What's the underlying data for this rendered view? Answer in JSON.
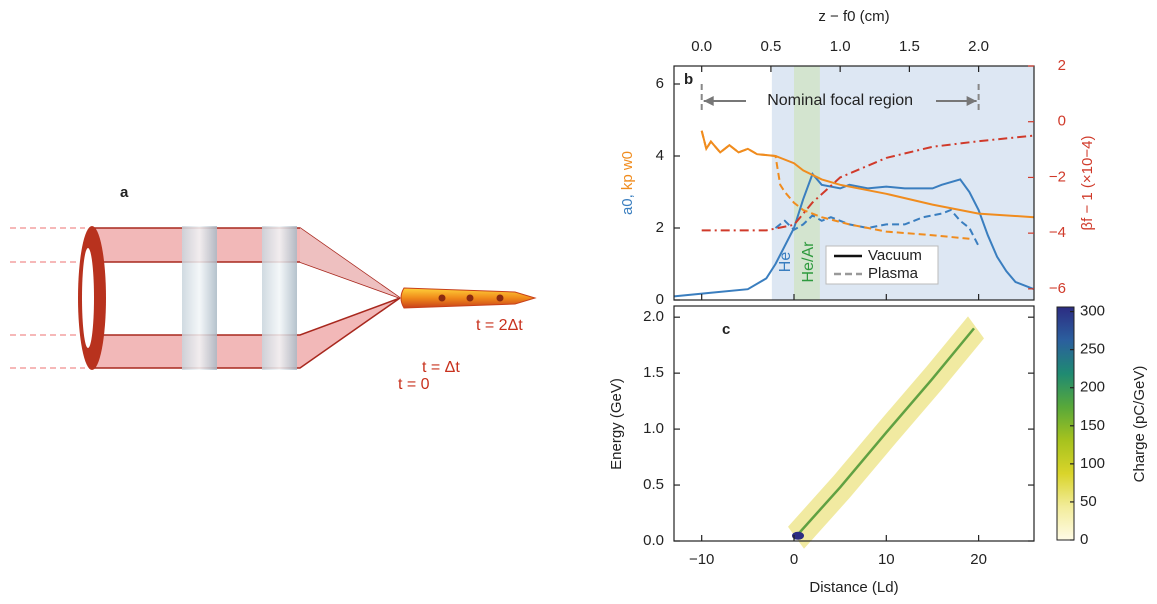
{
  "panel_a": {
    "label": "a",
    "times": [
      "t = 0",
      "t = Δt",
      "t = 2Δt"
    ]
  },
  "chart_data": [
    {
      "type": "line",
      "label": "b",
      "x2label": "z − f0 (cm)",
      "x2lim": [
        -0.2,
        2.4
      ],
      "x2ticks": [
        {
          "value": 0,
          "label": "0.0"
        },
        {
          "value": 0.5,
          "label": "0.5"
        },
        {
          "value": 1,
          "label": "1.0"
        },
        {
          "value": 1.5,
          "label": "1.5"
        },
        {
          "value": 2,
          "label": "2.0"
        }
      ],
      "xlim": [
        -13,
        26
      ],
      "ylabel_parts": [
        {
          "text": "a0,",
          "color": "#3a7ebf"
        },
        {
          "text": "kp w0",
          "color": "#f08c1e"
        }
      ],
      "ylim": [
        0,
        6.5
      ],
      "yticks": [
        0,
        2,
        4,
        6
      ],
      "y2label": "βf − 1 (×10−4)",
      "y2color": "#d03a2a",
      "y2lim": [
        -6.4,
        2
      ],
      "y2ticks": [
        {
          "value": -6,
          "label": "−6"
        },
        {
          "value": -4,
          "label": "−4"
        },
        {
          "value": -2,
          "label": "−2"
        },
        0,
        2
      ],
      "regions": [
        {
          "label": "He",
          "range": [
            -2.4,
            26
          ],
          "color": "#dde7f3",
          "text_color": "#3a7ebf"
        },
        {
          "label": "He/Ar",
          "range": [
            0,
            2.8
          ],
          "color": "#d3e4cf",
          "text_color": "#2e9a3e"
        }
      ],
      "annotation": {
        "text": "Nominal focal region",
        "range": [
          -10,
          20
        ]
      },
      "legend": {
        "position": "lower center",
        "entries": [
          {
            "name": "Vacuum",
            "dash": "solid"
          },
          {
            "name": "Plasma",
            "dash": "dashed"
          }
        ]
      },
      "series": [
        {
          "color": "#3a7ebf",
          "dash": "solid",
          "x": [
            -13,
            -9,
            -5,
            -3,
            -2,
            0,
            1,
            2,
            3,
            5,
            6,
            8,
            10,
            12,
            15,
            16,
            18,
            19,
            20,
            21,
            22,
            23,
            24,
            26
          ],
          "values": [
            0.1,
            0.2,
            0.3,
            0.6,
            1.0,
            2.0,
            2.8,
            3.5,
            3.2,
            3.1,
            3.2,
            3.1,
            3.15,
            3.1,
            3.1,
            3.2,
            3.35,
            3.0,
            2.5,
            1.8,
            1.2,
            0.8,
            0.5,
            0.3
          ]
        },
        {
          "color": "#3a7ebf",
          "dash": "dashed",
          "x": [
            -2,
            -1,
            0,
            1,
            2,
            3,
            4,
            6,
            8,
            10,
            12,
            14,
            16,
            17,
            18,
            19,
            20
          ],
          "values": [
            2.0,
            2.2,
            1.95,
            2.1,
            2.35,
            2.2,
            2.3,
            2.1,
            2.0,
            2.1,
            2.1,
            2.3,
            2.4,
            2.5,
            2.2,
            2.0,
            1.5
          ]
        },
        {
          "color": "#f08c1e",
          "dash": "solid",
          "x": [
            -10,
            -9.5,
            -9,
            -8,
            -7,
            -6,
            -5,
            -4,
            -2,
            0,
            1,
            3,
            5,
            10,
            15,
            20,
            26
          ],
          "values": [
            4.7,
            4.2,
            4.4,
            4.1,
            4.3,
            4.1,
            4.2,
            4.05,
            4.0,
            3.8,
            3.6,
            3.35,
            3.2,
            2.95,
            2.65,
            2.4,
            2.3
          ]
        },
        {
          "color": "#f08c1e",
          "dash": "dashed",
          "x": [
            -10,
            -9.5,
            -9,
            -8,
            -7,
            -6,
            -5,
            -4,
            -2,
            -1.5,
            -1,
            0,
            1,
            3,
            6,
            10,
            15,
            19
          ],
          "values": [
            4.7,
            4.2,
            4.4,
            4.1,
            4.3,
            4.1,
            4.2,
            4.05,
            4.0,
            3.2,
            3.0,
            2.7,
            2.5,
            2.3,
            2.1,
            1.9,
            1.8,
            1.7
          ]
        },
        {
          "color": "#d03a2a",
          "dash": "dashdot",
          "axis": "y2",
          "x": [
            -10,
            -3,
            0,
            2,
            5,
            10,
            15,
            20,
            26
          ],
          "values": [
            -3.9,
            -3.9,
            -3.7,
            -2.9,
            -2.0,
            -1.3,
            -0.9,
            -0.7,
            -0.5
          ]
        }
      ]
    },
    {
      "type": "heatmap",
      "label": "c",
      "xlabel": "Distance (Ld)",
      "xlim": [
        -13,
        26
      ],
      "xticks": [
        {
          "value": -10,
          "label": "−10"
        },
        0,
        10,
        20
      ],
      "ylabel": "Energy (GeV)",
      "ylim": [
        0,
        2.1
      ],
      "yticks": [
        {
          "value": 0,
          "label": "0.0"
        },
        {
          "value": 0.5,
          "label": "0.5"
        },
        {
          "value": 1,
          "label": "1.0"
        },
        {
          "value": 1.5,
          "label": "1.5"
        },
        {
          "value": 2,
          "label": "2.0"
        }
      ],
      "x": [
        0,
        5,
        10,
        15,
        19.5
      ],
      "values": [
        0.02,
        0.48,
        0.97,
        1.45,
        1.9
      ],
      "color": "#3c8f2a",
      "colorbar": {
        "label": "Charge (pC/GeV)",
        "lim": [
          0,
          306
        ],
        "ticks": [
          0,
          50,
          100,
          150,
          200,
          250,
          300
        ],
        "colormap": [
          "#fffbe6",
          "#f2ec9a",
          "#d9d42a",
          "#a6c21e",
          "#58a83a",
          "#1f8a72",
          "#2b5f9e",
          "#2c2c82"
        ]
      }
    }
  ]
}
